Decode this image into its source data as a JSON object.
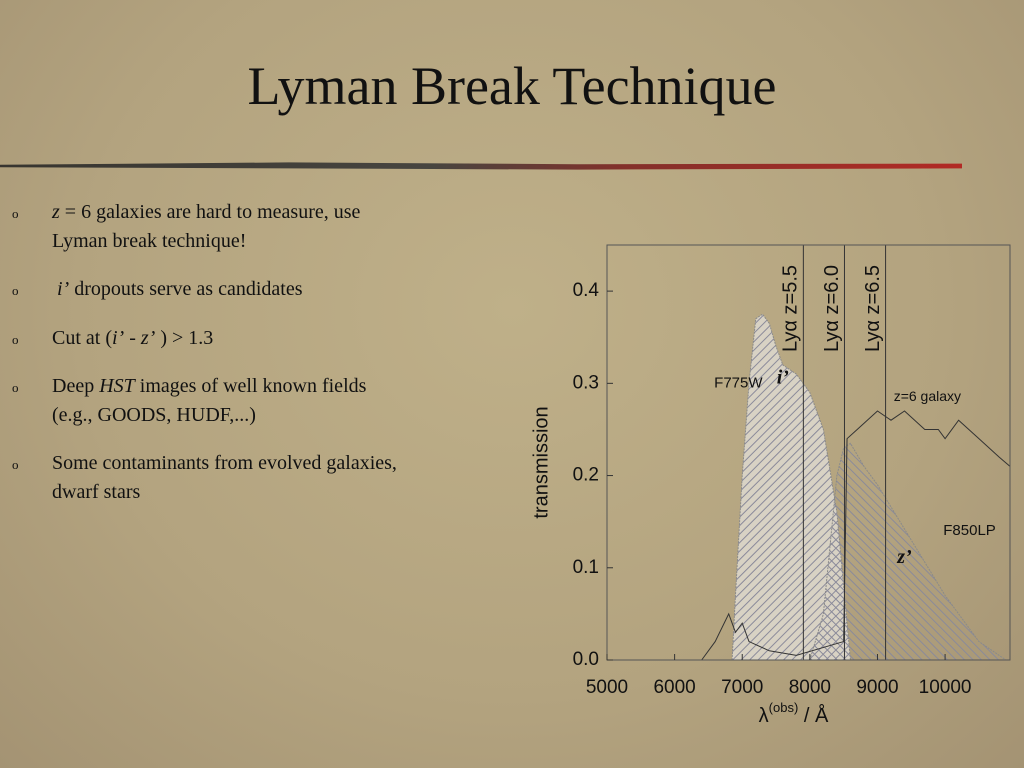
{
  "slide": {
    "title": "Lyman Break Technique",
    "marker": "o",
    "bullets": [
      [
        "z",
        " = 6 galaxies are hard to measure, use",
        "Lyman break technique!"
      ],
      [
        "i’",
        " dropouts serve as candidates"
      ],
      [
        "Cut at (",
        "i’",
        " - ",
        "z’",
        " ) > 1.3"
      ],
      [
        "Deep ",
        "HST",
        " images of well known fields",
        "(e.g., GOODS, HUDF,...)"
      ],
      [
        "Some contaminants from evolved galaxies,",
        "dwarf stars"
      ]
    ]
  },
  "chart_data": {
    "type": "area",
    "y_label": "transmission",
    "x_label": [
      "λ",
      "(obs)",
      " / Å"
    ],
    "xlim": [
      5000,
      10960
    ],
    "ylim": [
      0,
      0.45
    ],
    "xticks": [
      5000,
      6000,
      7000,
      8000,
      9000,
      10000
    ],
    "yticks": [
      {
        "value": 0,
        "label": "0.0"
      },
      {
        "value": 0.1,
        "label": "0.1"
      },
      {
        "value": 0.2,
        "label": "0.2"
      },
      {
        "value": 0.3,
        "label": "0.3"
      },
      {
        "value": 0.4,
        "label": "0.4"
      }
    ],
    "series": [
      {
        "name": "F775W",
        "color": "#8a8a8a",
        "fill": "hatch-a",
        "x": [
          6850,
          6900,
          7000,
          7100,
          7200,
          7300,
          7400,
          7500,
          7600,
          7700,
          7800,
          8000,
          8200,
          8400,
          8500,
          8600
        ],
        "values": [
          0,
          0.07,
          0.2,
          0.3,
          0.37,
          0.375,
          0.365,
          0.34,
          0.32,
          0.315,
          0.31,
          0.29,
          0.25,
          0.16,
          0.08,
          0
        ]
      },
      {
        "name": "F850LP",
        "color": "#8a8a8a",
        "fill": "hatch-b",
        "x": [
          8000,
          8200,
          8400,
          8500,
          8600,
          8800,
          9000,
          9500,
          10000,
          10500,
          10900
        ],
        "values": [
          0,
          0.05,
          0.2,
          0.23,
          0.235,
          0.21,
          0.19,
          0.13,
          0.07,
          0.02,
          0
        ]
      },
      {
        "name": "z=6 galaxy",
        "color": "#333333",
        "fill": "none",
        "x": [
          6400,
          6600,
          6800,
          6900,
          7000,
          7100,
          7400,
          7800,
          8500,
          8550,
          8700,
          9000,
          9200,
          9400,
          9700,
          9900,
          10000,
          10200,
          10500,
          10800,
          10960
        ],
        "values": [
          0,
          0.02,
          0.05,
          0.03,
          0.04,
          0.02,
          0.01,
          0.005,
          0.02,
          0.24,
          0.25,
          0.27,
          0.26,
          0.27,
          0.25,
          0.25,
          0.24,
          0.26,
          0.24,
          0.22,
          0.21
        ]
      }
    ],
    "filter_labels": [
      {
        "text": "i’",
        "x": 7600,
        "y": 0.305
      },
      {
        "text": "z’",
        "x": 9400,
        "y": 0.11
      }
    ],
    "lines": [
      {
        "label": "Lyα z=5.5",
        "x": 7904
      },
      {
        "label": "Lyα z=6.0",
        "x": 8512
      },
      {
        "label": "Lyα z=6.5",
        "x": 9120
      }
    ]
  }
}
